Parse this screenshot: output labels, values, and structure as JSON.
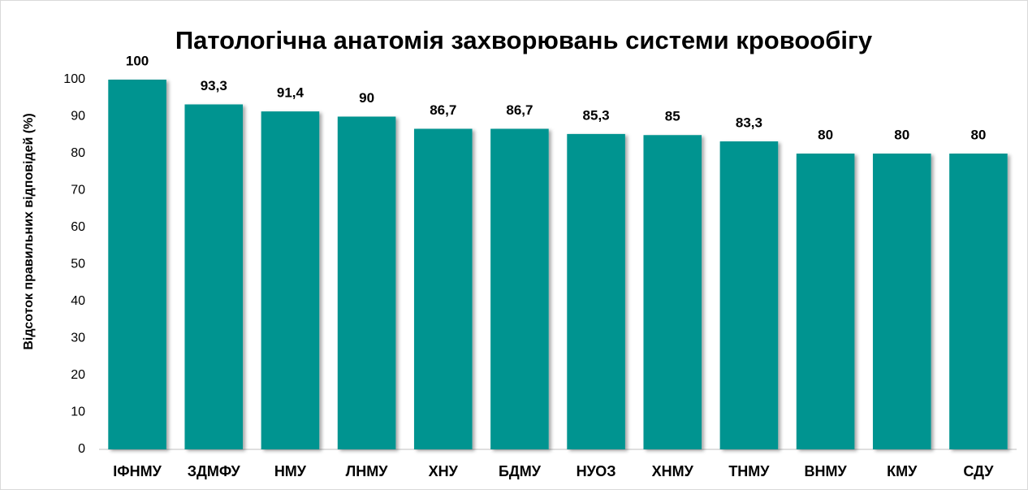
{
  "chart_data": {
    "type": "bar",
    "title": "Патологічна анатомія захворювань системи кровообігу",
    "y_label": "Відсоток правильних відповідей (%)",
    "categories": [
      "ІФНМУ",
      "ЗДМФУ",
      "НМУ",
      "ЛНМУ",
      "ХНУ",
      "БДМУ",
      "НУОЗ",
      "ХНМУ",
      "ТНМУ",
      "ВНМУ",
      "КМУ",
      "СДУ"
    ],
    "values": [
      100,
      93.3,
      91.4,
      90,
      86.7,
      86.7,
      85.3,
      85,
      83.3,
      80,
      80,
      80
    ],
    "value_labels": [
      "100",
      "93,3",
      "91,4",
      "90",
      "86,7",
      "86,7",
      "85,3",
      "85",
      "83,3",
      "80",
      "80",
      "80"
    ],
    "color": "#009490",
    "ylim": [
      0,
      100
    ],
    "yticks": [
      0,
      10,
      20,
      30,
      40,
      50,
      60,
      70,
      80,
      90,
      100
    ],
    "grid": false
  }
}
